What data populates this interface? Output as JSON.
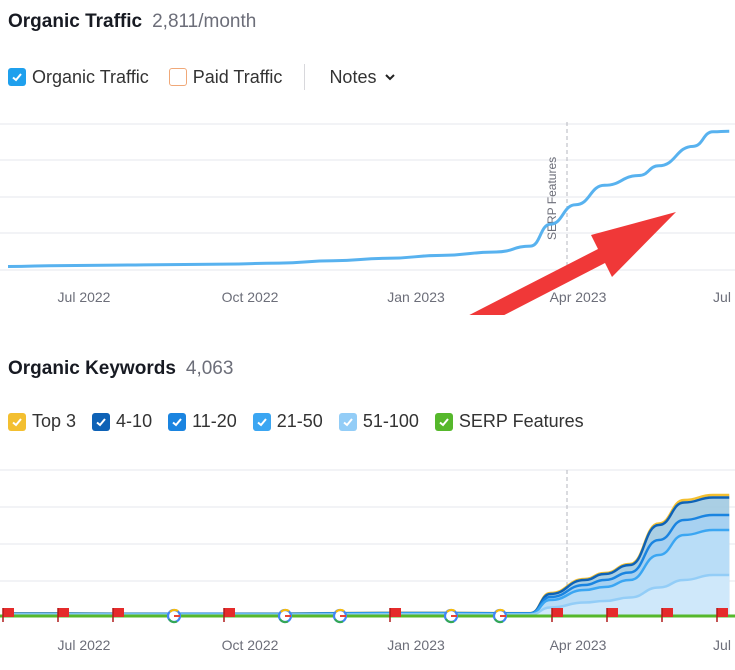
{
  "traffic": {
    "title": "Organic Traffic",
    "value": "2,811/month",
    "legend": [
      {
        "label": "Organic Traffic",
        "checked": true,
        "color": "#1fa0ed"
      },
      {
        "label": "Paid Traffic",
        "checked": false,
        "color": "#f0a878"
      }
    ],
    "notes_label": "Notes"
  },
  "keywords": {
    "title": "Organic Keywords",
    "value": "4,063",
    "legend": [
      {
        "label": "Top 3",
        "checked": true,
        "color": "#f3bf30"
      },
      {
        "label": "4-10",
        "checked": true,
        "color": "#0e62b6"
      },
      {
        "label": "11-20",
        "checked": true,
        "color": "#1a84e0"
      },
      {
        "label": "21-50",
        "checked": true,
        "color": "#3ba6f2"
      },
      {
        "label": "51-100",
        "checked": true,
        "color": "#93cdf7"
      },
      {
        "label": "SERP Features",
        "checked": true,
        "color": "#56b82c"
      }
    ]
  },
  "chart_data": [
    {
      "type": "line",
      "x": [
        "2022-06",
        "2022-07",
        "2022-08",
        "2022-09",
        "2022-10",
        "2022-11",
        "2022-12",
        "2023-01",
        "2023-02",
        "2023-03",
        "2023-03-20",
        "2023-04-01",
        "2023-04-15",
        "2023-05",
        "2023-05-20",
        "2023-06",
        "2023-06-20",
        "2023-07",
        "2023-07-10"
      ],
      "series": [
        {
          "name": "Organic Traffic",
          "color": "#58b2ef",
          "values": [
            30,
            50,
            60,
            70,
            80,
            100,
            150,
            200,
            260,
            330,
            450,
            900,
            1300,
            1700,
            1900,
            2100,
            2500,
            2800,
            2811
          ]
        }
      ],
      "x_tick_labels": [
        "Jul 2022",
        "Oct 2022",
        "Jan 2023",
        "Apr 2023",
        "Jul"
      ],
      "annotation": {
        "text": "SERP Features",
        "x": "2023-04"
      },
      "grid": true
    },
    {
      "type": "area",
      "x": [
        "2022-06",
        "2022-07",
        "2022-08",
        "2022-09",
        "2022-10",
        "2022-11",
        "2022-12",
        "2023-01",
        "2023-02",
        "2023-03",
        "2023-03-20",
        "2023-04-01",
        "2023-04-20",
        "2023-05-01",
        "2023-05-15",
        "2023-06-01",
        "2023-06-15",
        "2023-07-01",
        "2023-07-10"
      ],
      "series": [
        {
          "name": "51-100",
          "values": [
            10,
            10,
            8,
            6,
            6,
            6,
            10,
            12,
            12,
            10,
            10,
            150,
            250,
            280,
            350,
            550,
            700,
            800,
            800
          ]
        },
        {
          "name": "21-50",
          "values": [
            20,
            20,
            18,
            16,
            16,
            18,
            25,
            30,
            30,
            25,
            25,
            300,
            500,
            560,
            700,
            1200,
            1600,
            1700,
            1700
          ]
        },
        {
          "name": "11-20",
          "values": [
            25,
            25,
            22,
            20,
            20,
            22,
            30,
            35,
            35,
            30,
            30,
            360,
            600,
            700,
            850,
            1500,
            1900,
            2000,
            2000
          ]
        },
        {
          "name": "4-10",
          "values": [
            30,
            30,
            26,
            24,
            24,
            26,
            35,
            40,
            40,
            35,
            35,
            420,
            700,
            820,
            1000,
            1800,
            2250,
            2350,
            2350
          ]
        },
        {
          "name": "Top 3",
          "values": [
            32,
            32,
            28,
            26,
            26,
            28,
            37,
            42,
            42,
            37,
            37,
            440,
            720,
            840,
            1020,
            1830,
            2300,
            2400,
            2400
          ]
        }
      ],
      "serp_markers": [
        {
          "type": "flag",
          "x": "2022-06"
        },
        {
          "type": "flag",
          "x": "2022-07"
        },
        {
          "type": "flag",
          "x": "2022-08"
        },
        {
          "type": "google",
          "x": "2022-09"
        },
        {
          "type": "flag",
          "x": "2022-10"
        },
        {
          "type": "google",
          "x": "2022-11"
        },
        {
          "type": "google",
          "x": "2022-12"
        },
        {
          "type": "flag",
          "x": "2023-01"
        },
        {
          "type": "google",
          "x": "2023-02"
        },
        {
          "type": "google",
          "x": "2023-03"
        },
        {
          "type": "flag",
          "x": "2023-04"
        },
        {
          "type": "flag",
          "x": "2023-05"
        },
        {
          "type": "flag",
          "x": "2023-06"
        },
        {
          "type": "flag",
          "x": "2023-07"
        }
      ],
      "x_tick_labels": [
        "Jul 2022",
        "Oct 2022",
        "Jan 2023",
        "Apr 2023",
        "Jul"
      ],
      "grid": true
    }
  ]
}
